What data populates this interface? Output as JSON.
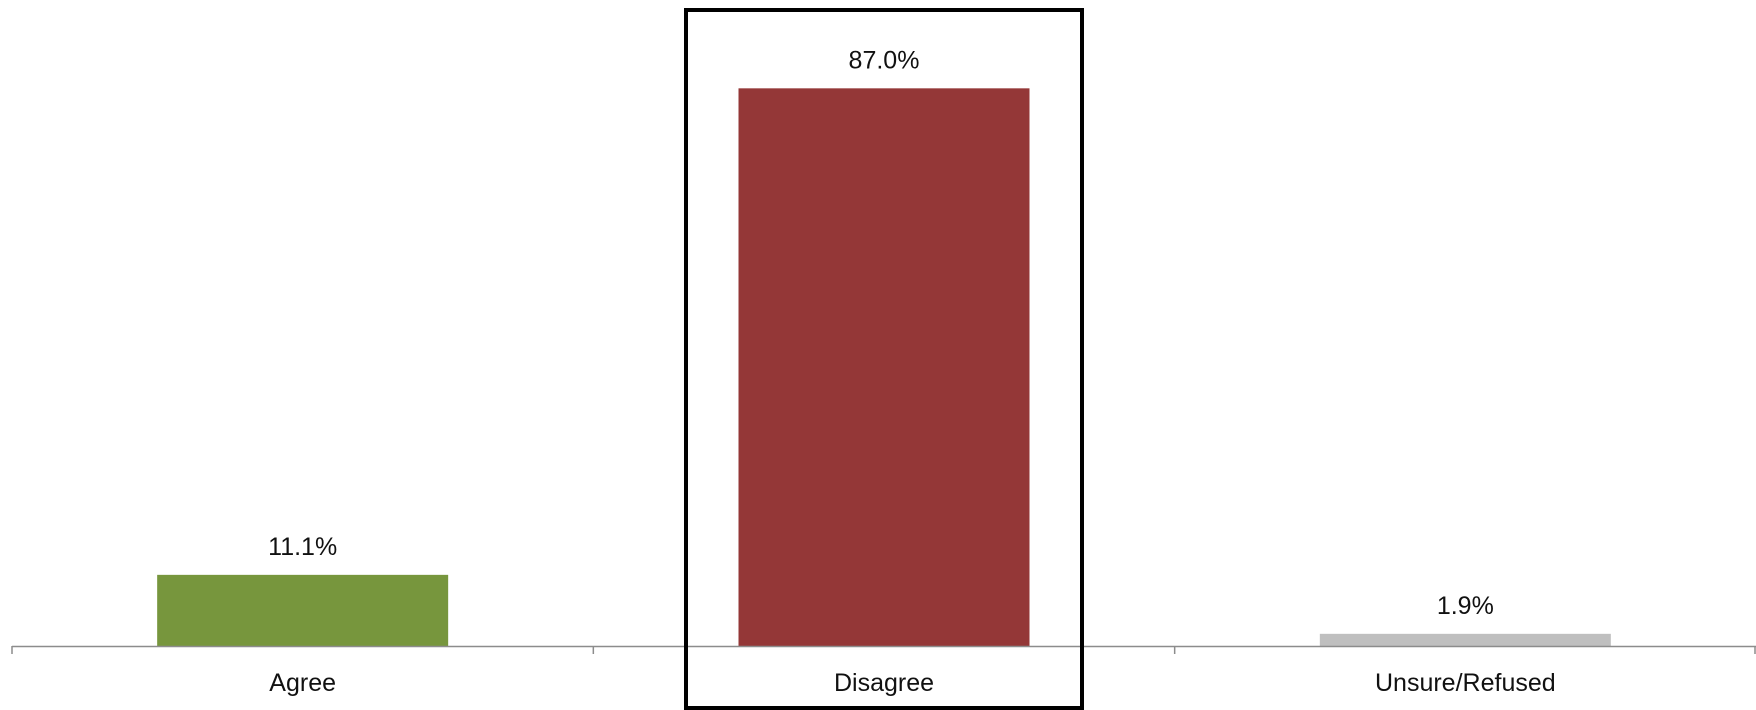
{
  "chart_data": {
    "type": "bar",
    "categories": [
      "Agree",
      "Disagree",
      "Unsure/Refused"
    ],
    "values": [
      11.1,
      87.0,
      1.9
    ],
    "value_labels": [
      "11.1%",
      "87.0%",
      "1.9%"
    ],
    "colors": [
      "#77963d",
      "#943737",
      "#bfbfbf"
    ],
    "highlighted_category": "Disagree",
    "highlight_color": "#000000",
    "axis_color": "#8c8c8c",
    "title": "",
    "xlabel": "",
    "ylabel": "",
    "ylim": [
      0,
      100
    ],
    "grid": false,
    "legend": "none"
  }
}
